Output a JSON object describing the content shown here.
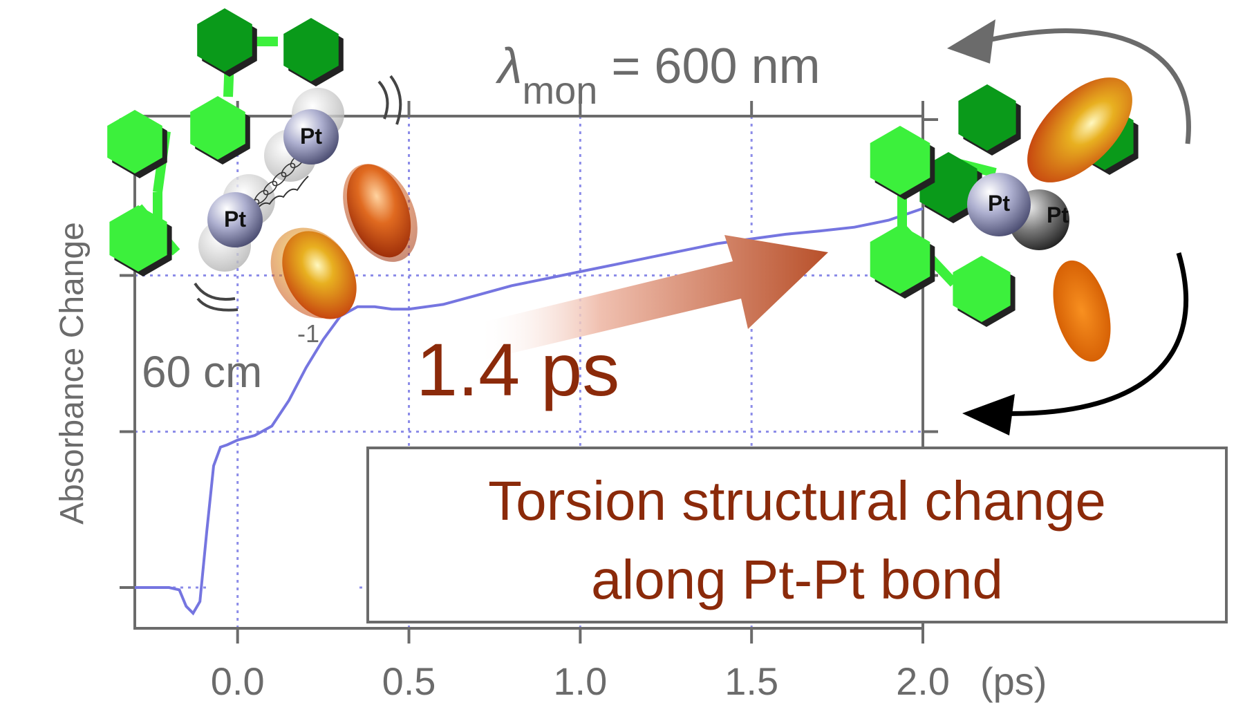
{
  "chart_data": {
    "type": "line",
    "title_parts": {
      "symbol": "λ",
      "subscript": "mon",
      "rest": " = 600 nm"
    },
    "ylabel": "Absorbance Change",
    "xlabel": "(ps)",
    "xlim": [
      -0.3,
      2.0
    ],
    "x_ticks": [
      "0.0",
      "0.5",
      "1.0",
      "1.5",
      "2.0"
    ],
    "x_tick_values": [
      0.0,
      0.5,
      1.0,
      1.5,
      2.0
    ],
    "ylim": [
      0,
      1
    ],
    "y_tick_values": [
      0.0,
      0.333,
      0.667,
      1.0
    ],
    "grid": true,
    "series": [
      {
        "color": "#7575e0",
        "x": [
          -0.3,
          -0.2,
          -0.17,
          -0.15,
          -0.13,
          -0.11,
          -0.09,
          -0.07,
          -0.05,
          -0.03,
          0.0,
          0.05,
          0.1,
          0.15,
          0.2,
          0.25,
          0.3,
          0.35,
          0.4,
          0.45,
          0.5,
          0.6,
          0.7,
          0.8,
          0.9,
          1.0,
          1.1,
          1.2,
          1.3,
          1.4,
          1.5,
          1.6,
          1.7,
          1.8,
          1.9,
          2.0
        ],
        "y": [
          0.0,
          0.0,
          -0.005,
          -0.04,
          -0.055,
          -0.03,
          0.12,
          0.26,
          0.3,
          0.305,
          0.315,
          0.325,
          0.345,
          0.4,
          0.47,
          0.53,
          0.58,
          0.6,
          0.6,
          0.595,
          0.595,
          0.605,
          0.625,
          0.645,
          0.66,
          0.675,
          0.69,
          0.705,
          0.72,
          0.735,
          0.745,
          0.755,
          0.762,
          0.77,
          0.785,
          0.81
        ]
      }
    ],
    "annotations": {
      "freq_value": "60 cm",
      "freq_sup": "-1",
      "time_constant": "1.4 ps",
      "box_line1": "Torsion structural change",
      "box_line2": "along Pt-Pt bond"
    },
    "atom_label": "Pt"
  },
  "colors": {
    "axis": "#6b6b6b",
    "grid": "#8c8ce8",
    "trace": "#7575e0",
    "annotation_text": "#8b2a0a",
    "hexagon_bright": "#3cf03c",
    "hexagon_dark": "#0a9a1a"
  }
}
